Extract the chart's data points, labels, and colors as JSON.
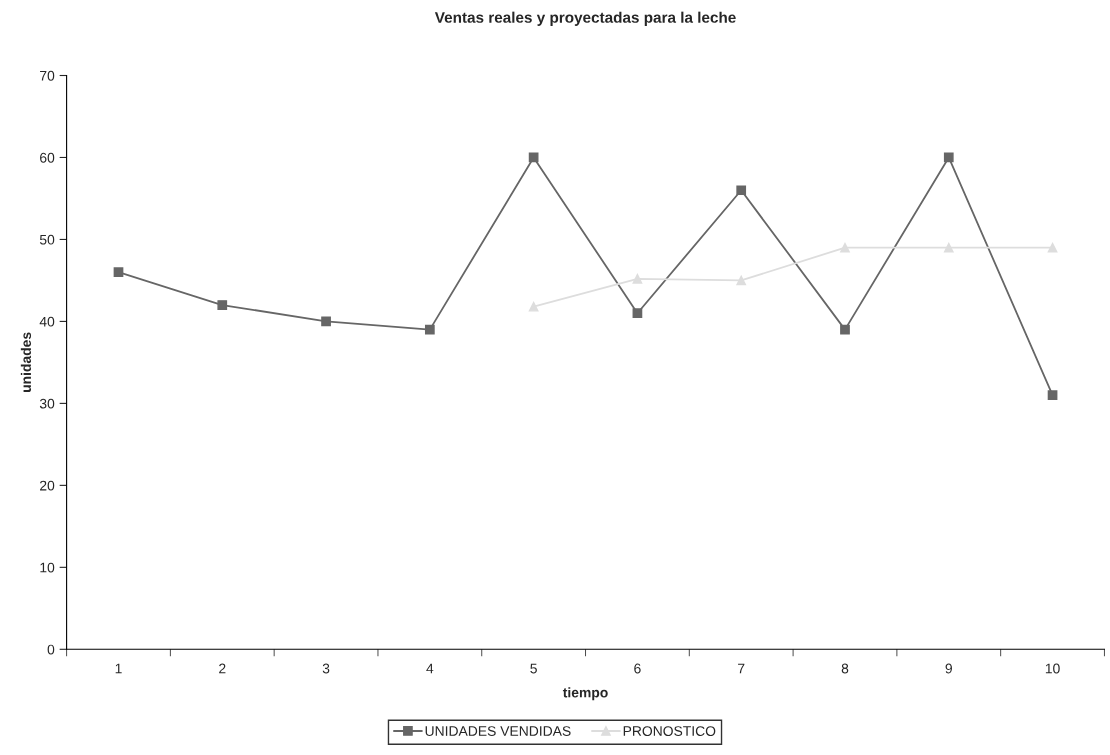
{
  "chart_data": {
    "type": "line",
    "title": "Ventas reales y proyectadas para la leche",
    "xlabel": "tiempo",
    "ylabel": "unidades",
    "categories": [
      "1",
      "2",
      "3",
      "4",
      "5",
      "6",
      "7",
      "8",
      "9",
      "10"
    ],
    "series": [
      {
        "name": "UNIDADES VENDIDAS",
        "color": "#666666",
        "marker": "square",
        "values": [
          46,
          42,
          40,
          39,
          60,
          41,
          56,
          39,
          60,
          31
        ]
      },
      {
        "name": "PRONOSTICO",
        "color": "#dddddd",
        "marker": "triangle",
        "values": [
          null,
          null,
          null,
          null,
          41.8,
          45.2,
          45,
          49,
          49,
          49
        ]
      }
    ],
    "ylim": [
      0,
      70
    ],
    "yticks": [
      0,
      10,
      20,
      30,
      40,
      50,
      60,
      70
    ],
    "grid": false,
    "legend": "bottom",
    "line_style": "solid"
  }
}
